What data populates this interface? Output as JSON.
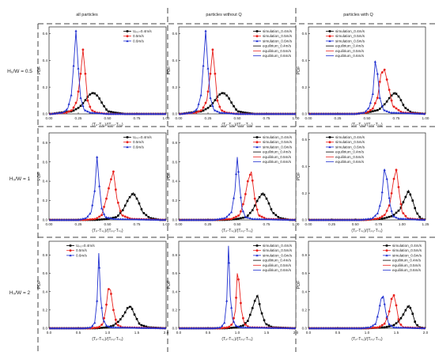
{
  "columns": [
    "all particles",
    "particles without Q",
    "particles with Q"
  ],
  "rows": [
    "H₀/W = 0.5",
    "H₀/W = 1",
    "H₀/W = 2"
  ],
  "colors": {
    "s04": "#000000",
    "s05": "#e8201c",
    "s06": "#2030d0"
  },
  "chart_data": [
    {
      "type": "line",
      "row": 0,
      "col": 0,
      "ylabel": "PDF",
      "xlabel": "(Tₚ-Tₛ₀)/(Tₚ₀-Tₛ₀)",
      "xlim": [
        0,
        1.0
      ],
      "ylim": [
        0,
        0.65
      ],
      "xticks": [
        "0.00",
        "0.25",
        "0.50",
        "0.75",
        "1.00"
      ],
      "yticks": [
        "0.0",
        "0.2",
        "0.4",
        "0.6"
      ],
      "legend": [
        "Uₚ₀=0.4m/s",
        "0.5m/s",
        "0.6m/s"
      ],
      "legend_pos": "top-right",
      "series": [
        {
          "color": "s04",
          "x": [
            0.02,
            0.1,
            0.2,
            0.26,
            0.3,
            0.34,
            0.38,
            0.42,
            0.46,
            0.5,
            0.56,
            0.65,
            1.0
          ],
          "y": [
            0,
            0.01,
            0.02,
            0.05,
            0.09,
            0.14,
            0.16,
            0.13,
            0.07,
            0.02,
            0.01,
            0,
            0
          ]
        },
        {
          "color": "s05",
          "x": [
            0.02,
            0.15,
            0.2,
            0.24,
            0.27,
            0.29,
            0.31,
            0.33,
            0.36,
            0.4,
            0.5,
            1.0
          ],
          "y": [
            0,
            0.01,
            0.03,
            0.1,
            0.3,
            0.48,
            0.3,
            0.1,
            0.03,
            0.01,
            0,
            0
          ]
        },
        {
          "color": "s06",
          "x": [
            0.02,
            0.12,
            0.16,
            0.19,
            0.21,
            0.23,
            0.25,
            0.27,
            0.3,
            0.35,
            0.5,
            1.0
          ],
          "y": [
            0,
            0.01,
            0.04,
            0.14,
            0.36,
            0.62,
            0.34,
            0.12,
            0.03,
            0.01,
            0,
            0
          ]
        }
      ]
    },
    {
      "type": "line",
      "row": 0,
      "col": 1,
      "ylabel": "PDF",
      "xlabel": "(Tₚ-Tₛ₀)/(Tₚ₀-Tₛ₀)",
      "xlim": [
        0,
        1.0
      ],
      "ylim": [
        0,
        0.65
      ],
      "xticks": [
        "0.00",
        "0.25",
        "0.50",
        "0.75",
        "1.00"
      ],
      "yticks": [
        "0.0",
        "0.2",
        "0.4",
        "0.6"
      ],
      "legend": [
        "simulation_0.4m/s",
        "simulation_0.5m/s",
        "simulation_0.6m/s",
        "equilirium_0.4m/s",
        "equilirium_0.5m/s",
        "equilirium_0.6m/s"
      ],
      "legend_pos": "top-right",
      "series": [
        {
          "color": "s04",
          "x": [
            0.02,
            0.1,
            0.2,
            0.26,
            0.3,
            0.34,
            0.38,
            0.42,
            0.46,
            0.5,
            0.56,
            0.65,
            1.0
          ],
          "y": [
            0,
            0.01,
            0.02,
            0.05,
            0.09,
            0.14,
            0.16,
            0.13,
            0.07,
            0.02,
            0.01,
            0,
            0
          ]
        },
        {
          "color": "s05",
          "x": [
            0.02,
            0.15,
            0.2,
            0.24,
            0.27,
            0.29,
            0.31,
            0.33,
            0.36,
            0.4,
            0.5,
            1.0
          ],
          "y": [
            0,
            0.01,
            0.03,
            0.1,
            0.3,
            0.48,
            0.3,
            0.1,
            0.03,
            0.01,
            0,
            0
          ]
        },
        {
          "color": "s06",
          "x": [
            0.02,
            0.12,
            0.16,
            0.19,
            0.21,
            0.23,
            0.25,
            0.27,
            0.3,
            0.35,
            0.5,
            1.0
          ],
          "y": [
            0,
            0.01,
            0.04,
            0.14,
            0.36,
            0.62,
            0.34,
            0.12,
            0.03,
            0.01,
            0,
            0
          ]
        }
      ]
    },
    {
      "type": "line",
      "row": 0,
      "col": 2,
      "ylabel": "PDF",
      "xlabel": "(Tₚ-Tₛ₀)/(Tₚ₀-Tₛ₀)",
      "xlim": [
        0,
        1.0
      ],
      "ylim": [
        0,
        0.65
      ],
      "xticks": [
        "0.00",
        "0.25",
        "0.50",
        "0.75",
        "1.00"
      ],
      "yticks": [
        "0.0",
        "0.2",
        "0.4",
        "0.6"
      ],
      "legend": [
        "simulation_0.4m/s",
        "simulation_0.5m/s",
        "simulation_0.6m/s",
        "equilirium_0.4m/s",
        "equilirium_0.5m/s",
        "equilirium_0.6m/s"
      ],
      "legend_pos": "top-left",
      "series": [
        {
          "color": "s04",
          "x": [
            0.02,
            0.4,
            0.5,
            0.6,
            0.66,
            0.7,
            0.74,
            0.78,
            0.82,
            0.88,
            1.0
          ],
          "y": [
            0,
            0,
            0.01,
            0.03,
            0.08,
            0.13,
            0.16,
            0.12,
            0.05,
            0.01,
            0
          ]
        },
        {
          "color": "s05",
          "x": [
            0.02,
            0.4,
            0.5,
            0.55,
            0.59,
            0.62,
            0.65,
            0.68,
            0.72,
            0.8,
            1.0
          ],
          "y": [
            0,
            0,
            0.01,
            0.04,
            0.12,
            0.3,
            0.33,
            0.22,
            0.06,
            0.01,
            0
          ]
        },
        {
          "color": "s06",
          "x": [
            0.02,
            0.4,
            0.48,
            0.52,
            0.55,
            0.57,
            0.59,
            0.61,
            0.64,
            0.7,
            1.0
          ],
          "y": [
            0,
            0,
            0.01,
            0.05,
            0.15,
            0.39,
            0.3,
            0.12,
            0.03,
            0.01,
            0
          ]
        }
      ]
    },
    {
      "type": "line",
      "row": 1,
      "col": 0,
      "ylabel": "PDF",
      "xlabel": "(Tₚ-Tₛ₀)/(Tₚ₀-Tₛ₀)",
      "xlim": [
        0,
        1.0
      ],
      "ylim": [
        0,
        0.9
      ],
      "xticks": [
        "0.00",
        "0.25",
        "0.50",
        "0.75",
        "1.00"
      ],
      "yticks": [
        "0.0",
        "0.2",
        "0.4",
        "0.6",
        "0.8"
      ],
      "legend": [
        "Uₚ₀=0.4m/s",
        "0.5m/s",
        "0.6m/s"
      ],
      "legend_pos": "top-right",
      "series": [
        {
          "color": "s04",
          "x": [
            0.02,
            0.4,
            0.5,
            0.58,
            0.63,
            0.68,
            0.72,
            0.76,
            0.8,
            0.86,
            0.95,
            1.0
          ],
          "y": [
            0,
            0,
            0.01,
            0.03,
            0.1,
            0.22,
            0.28,
            0.2,
            0.08,
            0.02,
            0,
            0
          ]
        },
        {
          "color": "s05",
          "x": [
            0.02,
            0.3,
            0.4,
            0.45,
            0.49,
            0.52,
            0.55,
            0.58,
            0.62,
            0.7,
            1.0
          ],
          "y": [
            0,
            0,
            0.01,
            0.05,
            0.22,
            0.38,
            0.5,
            0.22,
            0.05,
            0.01,
            0
          ]
        },
        {
          "color": "s06",
          "x": [
            0.02,
            0.25,
            0.32,
            0.36,
            0.39,
            0.41,
            0.43,
            0.45,
            0.48,
            0.55,
            1.0
          ],
          "y": [
            0,
            0,
            0.02,
            0.08,
            0.3,
            0.65,
            0.35,
            0.12,
            0.03,
            0.01,
            0
          ]
        }
      ]
    },
    {
      "type": "line",
      "row": 1,
      "col": 1,
      "ylabel": "PDF",
      "xlabel": "(Tₚ-Tₛ₀)/(Tₚ₀-Tₛ₀)",
      "xlim": [
        0,
        1.0
      ],
      "ylim": [
        0,
        0.9
      ],
      "xticks": [
        "0.00",
        "0.25",
        "0.50",
        "0.75",
        "1.00"
      ],
      "yticks": [
        "0.0",
        "0.2",
        "0.4",
        "0.6",
        "0.8"
      ],
      "legend": [
        "simulation_0.4m/s",
        "simulation_0.5m/s",
        "simulation_0.6m/s",
        "equilirium_0.4m/s",
        "equilirium_0.5m/s",
        "equilirium_0.6m/s"
      ],
      "legend_pos": "top-right",
      "series": [
        {
          "color": "s04",
          "x": [
            0.02,
            0.4,
            0.5,
            0.58,
            0.63,
            0.68,
            0.72,
            0.76,
            0.8,
            0.86,
            0.95,
            1.0
          ],
          "y": [
            0,
            0,
            0.01,
            0.03,
            0.1,
            0.22,
            0.28,
            0.2,
            0.08,
            0.02,
            0,
            0
          ]
        },
        {
          "color": "s05",
          "x": [
            0.02,
            0.3,
            0.45,
            0.52,
            0.56,
            0.59,
            0.62,
            0.65,
            0.68,
            0.75,
            1.0
          ],
          "y": [
            0,
            0,
            0.01,
            0.05,
            0.2,
            0.4,
            0.5,
            0.22,
            0.05,
            0.01,
            0
          ]
        },
        {
          "color": "s06",
          "x": [
            0.02,
            0.3,
            0.4,
            0.45,
            0.48,
            0.5,
            0.52,
            0.54,
            0.57,
            0.63,
            1.0
          ],
          "y": [
            0,
            0,
            0.02,
            0.08,
            0.3,
            0.65,
            0.35,
            0.12,
            0.03,
            0.01,
            0
          ]
        }
      ]
    },
    {
      "type": "line",
      "row": 1,
      "col": 2,
      "ylabel": "PDF",
      "xlabel": "(Tₚ-Tₛ₀)/(Tₚ₀-Tₛ₀)",
      "xlim": [
        0,
        1.25
      ],
      "ylim": [
        0,
        0.65
      ],
      "xticks": [
        "0.00",
        "0.25",
        "0.50",
        "0.75",
        "1.00",
        "1.25"
      ],
      "yticks": [
        "0.0",
        "0.2",
        "0.4",
        "0.6"
      ],
      "legend": [
        "simulation_0.4m/s",
        "simulation_0.5m/s",
        "simulation_0.6m/s",
        "equilirium_0.4m/s",
        "equilirium_0.5m/s",
        "equilirium_0.6m/s"
      ],
      "legend_pos": "top-left",
      "series": [
        {
          "color": "s04",
          "x": [
            0.02,
            0.6,
            0.8,
            0.9,
            0.98,
            1.03,
            1.07,
            1.11,
            1.15,
            1.2,
            1.25
          ],
          "y": [
            0,
            0,
            0.01,
            0.03,
            0.08,
            0.16,
            0.22,
            0.15,
            0.06,
            0.01,
            0
          ]
        },
        {
          "color": "s05",
          "x": [
            0.02,
            0.6,
            0.75,
            0.82,
            0.87,
            0.91,
            0.94,
            0.97,
            1.0,
            1.06,
            1.25
          ],
          "y": [
            0,
            0,
            0.01,
            0.04,
            0.12,
            0.3,
            0.38,
            0.2,
            0.06,
            0.01,
            0
          ]
        },
        {
          "color": "s06",
          "x": [
            0.02,
            0.55,
            0.68,
            0.74,
            0.78,
            0.81,
            0.84,
            0.87,
            0.9,
            0.96,
            1.25
          ],
          "y": [
            0,
            0,
            0.01,
            0.05,
            0.15,
            0.38,
            0.3,
            0.12,
            0.03,
            0.01,
            0
          ]
        }
      ]
    },
    {
      "type": "line",
      "row": 2,
      "col": 0,
      "ylabel": "PDF",
      "xlabel": "(Tₚ-Tₛ₀)/(Tₚ₀-Tₛ₀)",
      "xlim": [
        0,
        2.0
      ],
      "ylim": [
        0,
        0.95
      ],
      "xticks": [
        "0.0",
        "0.5",
        "1.0",
        "1.5",
        "2.0"
      ],
      "yticks": [
        "0.0",
        "0.2",
        "0.4",
        "0.6",
        "0.8"
      ],
      "legend": [
        "Uₚ₀=0.4m/s",
        "0.5m/s",
        "0.6m/s"
      ],
      "legend_pos": "top-left",
      "series": [
        {
          "color": "s04",
          "x": [
            0.02,
            0.8,
            1.0,
            1.1,
            1.2,
            1.28,
            1.34,
            1.4,
            1.46,
            1.55,
            1.7,
            2.0
          ],
          "y": [
            0,
            0,
            0.01,
            0.03,
            0.08,
            0.15,
            0.22,
            0.24,
            0.15,
            0.04,
            0.01,
            0
          ]
        },
        {
          "color": "s05",
          "x": [
            0.02,
            0.7,
            0.85,
            0.92,
            0.97,
            1.01,
            1.05,
            1.1,
            1.16,
            1.25,
            2.0
          ],
          "y": [
            0,
            0,
            0.01,
            0.05,
            0.2,
            0.43,
            0.42,
            0.2,
            0.04,
            0.01,
            0
          ]
        },
        {
          "color": "s06",
          "x": [
            0.02,
            0.6,
            0.72,
            0.78,
            0.82,
            0.85,
            0.88,
            0.92,
            0.98,
            1.05,
            2.0
          ],
          "y": [
            0,
            0,
            0.01,
            0.06,
            0.3,
            0.82,
            0.35,
            0.1,
            0.03,
            0.01,
            0
          ]
        }
      ]
    },
    {
      "type": "line",
      "row": 2,
      "col": 1,
      "ylabel": "PDF",
      "xlabel": "(Tₚ-Tₛ₀)/(Tₚ₀-Tₛ₀)",
      "xlim": [
        0,
        2.0
      ],
      "ylim": [
        0,
        0.95
      ],
      "xticks": [
        "0.0",
        "0.5",
        "1.0",
        "1.5",
        "2.0"
      ],
      "yticks": [
        "0.0",
        "0.2",
        "0.4",
        "0.6",
        "0.8"
      ],
      "legend": [
        "simulation_0.4m/s",
        "simulation_0.5m/s",
        "simulation_0.6m/s",
        "equilirium_0.4m/s",
        "equilirium_0.5m/s",
        "equilirium_0.6m/s"
      ],
      "legend_pos": "top-right",
      "series": [
        {
          "color": "s04",
          "x": [
            0.02,
            0.8,
            1.0,
            1.1,
            1.18,
            1.24,
            1.3,
            1.35,
            1.4,
            1.48,
            1.6,
            2.0
          ],
          "y": [
            0,
            0,
            0.01,
            0.03,
            0.08,
            0.18,
            0.3,
            0.36,
            0.2,
            0.05,
            0.01,
            0
          ]
        },
        {
          "color": "s05",
          "x": [
            0.02,
            0.7,
            0.85,
            0.92,
            0.97,
            1.0,
            1.03,
            1.07,
            1.12,
            1.2,
            2.0
          ],
          "y": [
            0,
            0,
            0.01,
            0.05,
            0.2,
            0.6,
            0.5,
            0.2,
            0.05,
            0.01,
            0
          ]
        },
        {
          "color": "s06",
          "x": [
            0.02,
            0.6,
            0.72,
            0.78,
            0.82,
            0.85,
            0.88,
            0.92,
            0.97,
            1.05,
            2.0
          ],
          "y": [
            0,
            0,
            0.01,
            0.06,
            0.3,
            0.9,
            0.35,
            0.1,
            0.03,
            0.01,
            0
          ]
        }
      ]
    },
    {
      "type": "line",
      "row": 2,
      "col": 2,
      "ylabel": "PDF",
      "xlabel": "(Tₚ-Tₛ₀)/(Tₚ₀-Tₛ₀)",
      "xlim": [
        0,
        2.0
      ],
      "ylim": [
        0,
        0.95
      ],
      "xticks": [
        "0.0",
        "0.5",
        "1.0",
        "1.5",
        "2.0"
      ],
      "yticks": [
        "0.0",
        "0.2",
        "0.4",
        "0.6",
        "0.8"
      ],
      "legend": [
        "simulation_0.4m/s",
        "simulation_0.5m/s",
        "simulation_0.6m/s",
        "equilirium_0.4m/s",
        "equilirium_0.5m/s",
        "equilirium_0.6m/s"
      ],
      "legend_pos": "top-right",
      "series": [
        {
          "color": "s04",
          "x": [
            0.02,
            1.0,
            1.3,
            1.45,
            1.55,
            1.62,
            1.68,
            1.72,
            1.77,
            1.83,
            1.9,
            2.0
          ],
          "y": [
            0,
            0,
            0.01,
            0.03,
            0.08,
            0.15,
            0.22,
            0.25,
            0.18,
            0.05,
            0.01,
            0
          ]
        },
        {
          "color": "s05",
          "x": [
            0.02,
            1.0,
            1.2,
            1.3,
            1.37,
            1.42,
            1.46,
            1.5,
            1.55,
            1.62,
            2.0
          ],
          "y": [
            0,
            0,
            0.01,
            0.05,
            0.15,
            0.32,
            0.36,
            0.25,
            0.06,
            0.01,
            0
          ]
        },
        {
          "color": "s06",
          "x": [
            0.02,
            0.9,
            1.05,
            1.15,
            1.2,
            1.24,
            1.28,
            1.32,
            1.37,
            1.45,
            2.0
          ],
          "y": [
            0,
            0,
            0.01,
            0.05,
            0.18,
            0.32,
            0.35,
            0.18,
            0.05,
            0.01,
            0
          ]
        }
      ]
    }
  ]
}
